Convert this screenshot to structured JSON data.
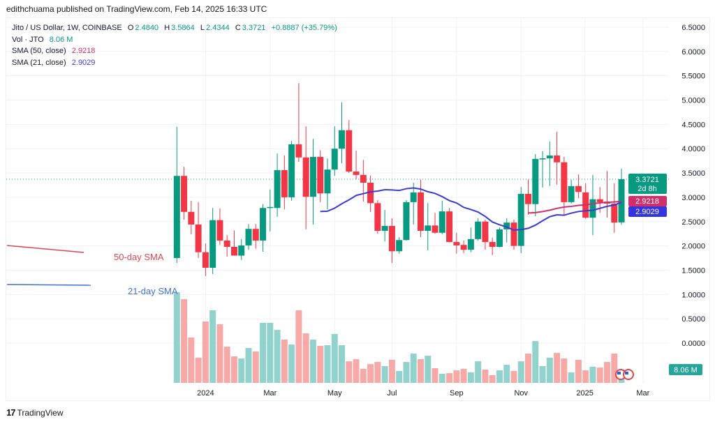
{
  "publisher_line": "edithchuama published on TradingView.com, Feb 14, 2025 16:33 UTC",
  "legend": {
    "symbol": "Jito / US Dollar, 1W, COINBASE",
    "o_label": "O",
    "o": "2.4840",
    "h_label": "H",
    "h": "3.5864",
    "l_label": "L",
    "l": "2.4344",
    "c_label": "C",
    "c": "3.3721",
    "change": "+0.8887 (+35.79%)",
    "vol_label": "Vol · JTO",
    "vol": "8.06 M",
    "sma50_label": "SMA (50, close)",
    "sma50": "2.9218",
    "sma21_label": "SMA (21, close)",
    "sma21": "2.9029"
  },
  "annotations": {
    "sma50_text": "50-day SMA",
    "sma21_text": "21-day SMA"
  },
  "badges": {
    "price": "3.3721",
    "countdown": "2d 8h",
    "sma50": "2.9218",
    "sma21": "2.9029",
    "volume": "8.06 M"
  },
  "colors": {
    "up": "#089981",
    "down": "#f23645",
    "vol_up": "#92d2cc",
    "vol_down": "#f7a9a7",
    "sma50": "#d12f6b",
    "sma21": "#3a3ad6",
    "annotation_red": "#e0454f",
    "annotation_blue": "#3f6fd8"
  },
  "brand": "TradingView",
  "chart_data": {
    "type": "candlestick",
    "interval": "1W",
    "first_week": "2023-12-04",
    "y_ticks": [
      "6.5000",
      "6.0000",
      "5.5000",
      "5.0000",
      "4.5000",
      "4.0000",
      "3.5000",
      "3.0000",
      "2.5000",
      "2.0000",
      "1.5000",
      "1.0000",
      "0.5000",
      "0.0000"
    ],
    "ylim": [
      0,
      6.5
    ],
    "x_ticks": [
      {
        "label": "2024",
        "week": 4
      },
      {
        "label": "Mar",
        "week": 13
      },
      {
        "label": "May",
        "week": 22
      },
      {
        "label": "Jul",
        "week": 30
      },
      {
        "label": "Sep",
        "week": 39
      },
      {
        "label": "Nov",
        "week": 48
      },
      {
        "label": "2025",
        "week": 56.9
      },
      {
        "label": "Mar",
        "week": 65
      }
    ],
    "grid": true,
    "ohlc": [
      [
        1.75,
        4.45,
        1.65,
        3.44
      ],
      [
        3.44,
        3.63,
        2.54,
        2.7
      ],
      [
        2.7,
        2.93,
        2.24,
        2.44
      ],
      [
        2.44,
        2.9,
        1.75,
        1.87
      ],
      [
        1.87,
        2.05,
        1.38,
        1.55
      ],
      [
        1.55,
        2.78,
        1.42,
        2.53
      ],
      [
        2.53,
        2.77,
        2.02,
        2.11
      ],
      [
        2.11,
        2.22,
        1.78,
        1.98
      ],
      [
        1.98,
        2.32,
        1.8,
        1.8
      ],
      [
        1.8,
        2.14,
        1.71,
        2.01
      ],
      [
        2.01,
        2.45,
        1.92,
        2.35
      ],
      [
        2.35,
        2.45,
        1.94,
        2.11
      ],
      [
        2.11,
        2.86,
        1.88,
        2.78
      ],
      [
        2.79,
        3.16,
        2.3,
        2.8
      ],
      [
        2.78,
        3.9,
        2.6,
        3.56
      ],
      [
        3.56,
        3.86,
        2.75,
        3.0
      ],
      [
        3.0,
        4.16,
        2.93,
        4.09
      ],
      [
        4.09,
        5.35,
        3.73,
        3.82
      ],
      [
        3.82,
        4.46,
        2.34,
        3.01
      ],
      [
        3.01,
        4.2,
        2.44,
        3.83
      ],
      [
        3.83,
        3.97,
        2.9,
        3.08
      ],
      [
        3.08,
        3.8,
        2.75,
        3.57
      ],
      [
        3.57,
        4.46,
        3.44,
        4.0
      ],
      [
        4.0,
        4.95,
        3.7,
        4.38
      ],
      [
        4.38,
        4.59,
        3.5,
        3.53
      ],
      [
        3.53,
        3.96,
        3.37,
        3.46
      ],
      [
        3.46,
        3.77,
        2.91,
        3.3
      ],
      [
        3.3,
        3.45,
        2.7,
        2.88
      ],
      [
        2.88,
        2.94,
        2.25,
        2.31
      ],
      [
        2.31,
        2.74,
        2.09,
        2.41
      ],
      [
        2.41,
        2.57,
        1.65,
        1.89
      ],
      [
        1.89,
        2.18,
        1.84,
        2.12
      ],
      [
        2.12,
        2.94,
        2.11,
        2.9
      ],
      [
        2.9,
        3.3,
        2.44,
        3.1
      ],
      [
        3.1,
        3.36,
        2.18,
        2.31
      ],
      [
        2.31,
        2.88,
        1.91,
        2.42
      ],
      [
        2.42,
        2.68,
        2.25,
        2.27
      ],
      [
        2.27,
        2.93,
        2.24,
        2.71
      ],
      [
        2.71,
        2.78,
        2.07,
        2.08
      ],
      [
        2.08,
        2.27,
        1.84,
        2.01
      ],
      [
        2.02,
        2.11,
        1.85,
        1.92
      ],
      [
        1.92,
        2.38,
        1.87,
        2.14
      ],
      [
        2.14,
        2.57,
        2.11,
        2.5
      ],
      [
        2.5,
        2.54,
        1.92,
        2.08
      ],
      [
        2.08,
        2.17,
        1.81,
        1.98
      ],
      [
        1.98,
        2.38,
        1.97,
        2.34
      ],
      [
        2.34,
        2.57,
        2.07,
        2.48
      ],
      [
        2.48,
        2.54,
        1.92,
        2.0
      ],
      [
        2.0,
        3.21,
        1.85,
        3.07
      ],
      [
        3.07,
        3.36,
        2.64,
        2.86
      ],
      [
        2.86,
        3.89,
        2.61,
        3.79
      ],
      [
        3.79,
        3.95,
        3.2,
        3.8
      ],
      [
        3.8,
        4.15,
        3.23,
        3.86
      ],
      [
        3.86,
        4.35,
        3.26,
        3.72
      ],
      [
        3.72,
        3.83,
        2.64,
        2.9
      ],
      [
        2.9,
        3.36,
        2.87,
        3.23
      ],
      [
        3.23,
        3.47,
        2.98,
        3.11
      ],
      [
        3.1,
        3.29,
        2.56,
        2.58
      ],
      [
        2.58,
        3.46,
        2.22,
        2.96
      ],
      [
        2.96,
        3.21,
        2.68,
        2.9
      ],
      [
        2.91,
        3.54,
        2.58,
        2.87
      ],
      [
        2.87,
        3.29,
        2.27,
        2.48
      ],
      [
        2.484,
        3.5864,
        2.4344,
        3.3721
      ]
    ],
    "volume_millions": [
      55.1,
      50.9,
      27.6,
      15.3,
      37.3,
      44.1,
      35.6,
      22.0,
      16.1,
      14.8,
      21.2,
      19.1,
      36.5,
      36.5,
      32.2,
      26.3,
      23.3,
      44.1,
      30.1,
      26.3,
      22.5,
      22.9,
      29.7,
      22.9,
      13.1,
      14.4,
      8.5,
      11.4,
      12.7,
      10.2,
      14.0,
      7.2,
      12.7,
      17.8,
      14.4,
      16.5,
      8.9,
      5.5,
      5.9,
      7.6,
      8.5,
      6.4,
      13.1,
      8.1,
      4.7,
      7.6,
      11.0,
      7.2,
      13.1,
      17.8,
      25.4,
      10.2,
      15.3,
      18.2,
      14.8,
      6.4,
      14.0,
      7.6,
      9.8,
      9.3,
      12.7,
      17.8,
      8.06
    ],
    "indicators": [
      {
        "name": "SMA (50, close)",
        "period": 50,
        "last": 2.9218
      },
      {
        "name": "SMA (21, close)",
        "period": 21,
        "last": 2.9029
      }
    ],
    "last_price_line": 3.3721
  }
}
